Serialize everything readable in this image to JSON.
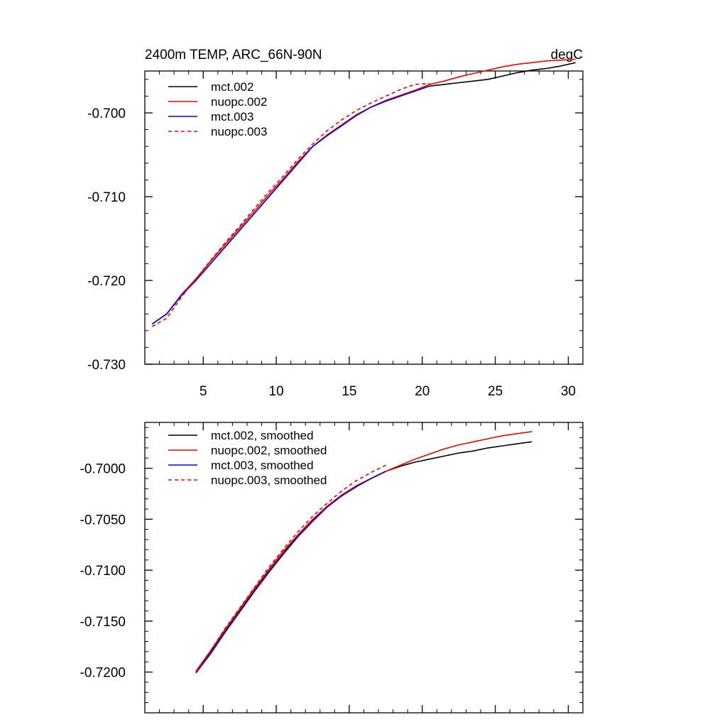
{
  "chart_data": [
    {
      "type": "line",
      "title": "2400m TEMP, ARC_66N-90N",
      "units": "degC",
      "xlabel": "",
      "ylabel": "",
      "xlim": [
        1,
        31
      ],
      "ylim": [
        -0.73,
        -0.695
      ],
      "xticks": [
        5,
        10,
        15,
        20,
        25,
        30
      ],
      "xtick_labels": [
        "5",
        "10",
        "15",
        "20",
        "25",
        "30"
      ],
      "yticks": [
        -0.73,
        -0.72,
        -0.71,
        -0.7
      ],
      "ytick_labels": [
        "-0.730",
        "-0.720",
        "-0.710",
        "-0.700"
      ],
      "legend_position": "top-left",
      "series": [
        {
          "name": "mct.002",
          "color": "#000000",
          "dash": "solid",
          "x": [
            1.5,
            2.5,
            3.5,
            4.5,
            5.5,
            6.5,
            7.5,
            8.5,
            9.5,
            10.5,
            11.5,
            12.5,
            13.5,
            14.5,
            15.5,
            16.5,
            17.5,
            18.5,
            19.5,
            20.5,
            21.5,
            22.5,
            23.5,
            24.5,
            25.5,
            26.5,
            27.5,
            28.5,
            29.5,
            30.5
          ],
          "y": [
            -0.7252,
            -0.724,
            -0.7218,
            -0.72,
            -0.718,
            -0.716,
            -0.714,
            -0.712,
            -0.71,
            -0.708,
            -0.706,
            -0.704,
            -0.7027,
            -0.7015,
            -0.7003,
            -0.6993,
            -0.6986,
            -0.698,
            -0.6974,
            -0.6968,
            -0.6966,
            -0.6964,
            -0.6962,
            -0.696,
            -0.6956,
            -0.6952,
            -0.6949,
            -0.6947,
            -0.6944,
            -0.694
          ]
        },
        {
          "name": "nuopc.002",
          "color": "#ff0000",
          "dash": "solid",
          "x": [
            1.5,
            2.5,
            3.5,
            4.5,
            5.5,
            6.5,
            7.5,
            8.5,
            9.5,
            10.5,
            11.5,
            12.5,
            13.5,
            14.5,
            15.5,
            16.5,
            17.5,
            18.5,
            19.5,
            20.5,
            21.5,
            22.5,
            23.5,
            24.5,
            25.5,
            26.5,
            27.5,
            28.5,
            29.5,
            30.5
          ],
          "y": [
            -0.7252,
            -0.724,
            -0.7217,
            -0.7198,
            -0.7177,
            -0.7157,
            -0.7137,
            -0.7117,
            -0.7097,
            -0.7078,
            -0.7058,
            -0.704,
            -0.7026,
            -0.7014,
            -0.7002,
            -0.6993,
            -0.6985,
            -0.6979,
            -0.6973,
            -0.6966,
            -0.6962,
            -0.6957,
            -0.6953,
            -0.6949,
            -0.6945,
            -0.6942,
            -0.694,
            -0.6938,
            -0.6937,
            -0.6936
          ]
        },
        {
          "name": "mct.003",
          "color": "#0000ff",
          "dash": "solid",
          "x": [
            1.5,
            2.5,
            3.5,
            4.5,
            5.5,
            6.5,
            7.5,
            8.5,
            9.5,
            10.5,
            11.5,
            12.5,
            13.5,
            14.5,
            15.5,
            16.5,
            17.5,
            18.5,
            19.5,
            20.5
          ],
          "y": [
            -0.7252,
            -0.724,
            -0.7218,
            -0.72,
            -0.718,
            -0.716,
            -0.714,
            -0.712,
            -0.71,
            -0.708,
            -0.706,
            -0.704,
            -0.7027,
            -0.7015,
            -0.7003,
            -0.6993,
            -0.6986,
            -0.698,
            -0.6974,
            -0.6968
          ]
        },
        {
          "name": "nuopc.003",
          "color": "#ff0000",
          "dash": "dashed",
          "x": [
            1.5,
            2.5,
            3.5,
            4.5,
            5.5,
            6.5,
            7.5,
            8.5,
            9.5,
            10.5,
            11.5,
            12.5,
            13.5,
            14.5,
            15.5,
            16.5,
            17.5,
            18.5,
            19.5,
            20.5
          ],
          "y": [
            -0.7255,
            -0.7245,
            -0.722,
            -0.7198,
            -0.7176,
            -0.7155,
            -0.7135,
            -0.7114,
            -0.7094,
            -0.7075,
            -0.7055,
            -0.7037,
            -0.7021,
            -0.7008,
            -0.6997,
            -0.6988,
            -0.698,
            -0.6972,
            -0.6966,
            -0.6965
          ]
        }
      ]
    },
    {
      "type": "line",
      "title": "",
      "xlabel": "",
      "ylabel": "",
      "xlim": [
        1,
        31
      ],
      "ylim": [
        -0.724,
        -0.6955
      ],
      "xticks": [
        5,
        10,
        15,
        20,
        25,
        30
      ],
      "xtick_labels": [],
      "yticks": [
        -0.72,
        -0.715,
        -0.71,
        -0.705,
        -0.7
      ],
      "ytick_labels": [
        "-0.7200",
        "-0.7150",
        "-0.7100",
        "-0.7050",
        "-0.7000"
      ],
      "legend_position": "top-left",
      "series": [
        {
          "name": "mct.002, smoothed",
          "color": "#000000",
          "dash": "solid",
          "x": [
            4.5,
            5.5,
            6.5,
            7.5,
            8.5,
            9.5,
            10.5,
            11.5,
            12.5,
            13.5,
            14.5,
            15.5,
            16.5,
            17.5,
            18.5,
            19.5,
            20.5,
            21.5,
            22.5,
            23.5,
            24.5,
            25.5,
            26.5,
            27.5
          ],
          "y": [
            -0.72,
            -0.7181,
            -0.716,
            -0.714,
            -0.712,
            -0.7101,
            -0.7083,
            -0.7066,
            -0.7051,
            -0.7037,
            -0.7026,
            -0.7017,
            -0.701,
            -0.7003,
            -0.6998,
            -0.6994,
            -0.6991,
            -0.6988,
            -0.6985,
            -0.6983,
            -0.698,
            -0.6978,
            -0.6976,
            -0.6974
          ]
        },
        {
          "name": "nuopc.002, smoothed",
          "color": "#ff0000",
          "dash": "solid",
          "x": [
            4.5,
            5.5,
            6.5,
            7.5,
            8.5,
            9.5,
            10.5,
            11.5,
            12.5,
            13.5,
            14.5,
            15.5,
            16.5,
            17.5,
            18.5,
            19.5,
            20.5,
            21.5,
            22.5,
            23.5,
            24.5,
            25.5,
            26.5,
            27.5
          ],
          "y": [
            -0.7199,
            -0.7179,
            -0.7158,
            -0.7138,
            -0.7118,
            -0.7099,
            -0.7081,
            -0.7065,
            -0.705,
            -0.7037,
            -0.7026,
            -0.7017,
            -0.701,
            -0.7003,
            -0.6997,
            -0.6991,
            -0.6986,
            -0.6981,
            -0.6977,
            -0.6974,
            -0.6971,
            -0.6968,
            -0.6966,
            -0.6964
          ]
        },
        {
          "name": "mct.003, smoothed",
          "color": "#0000ff",
          "dash": "solid",
          "x": [
            4.5,
            5.5,
            6.5,
            7.5,
            8.5,
            9.5,
            10.5,
            11.5,
            12.5,
            13.5,
            14.5,
            15.5,
            16.5,
            17.5
          ],
          "y": [
            -0.7201,
            -0.7182,
            -0.7161,
            -0.7141,
            -0.7121,
            -0.7102,
            -0.7084,
            -0.7067,
            -0.7052,
            -0.7038,
            -0.7027,
            -0.7018,
            -0.701,
            -0.7003
          ]
        },
        {
          "name": "nuopc.003, smoothed",
          "color": "#ff0000",
          "dash": "dashed",
          "x": [
            4.5,
            5.5,
            6.5,
            7.5,
            8.5,
            9.5,
            10.5,
            11.5,
            12.5,
            13.5,
            14.5,
            15.5,
            16.5,
            17.5
          ],
          "y": [
            -0.72,
            -0.7179,
            -0.7157,
            -0.7137,
            -0.7117,
            -0.7097,
            -0.7079,
            -0.7062,
            -0.7047,
            -0.7034,
            -0.7022,
            -0.7012,
            -0.7004,
            -0.6997
          ]
        }
      ]
    }
  ]
}
